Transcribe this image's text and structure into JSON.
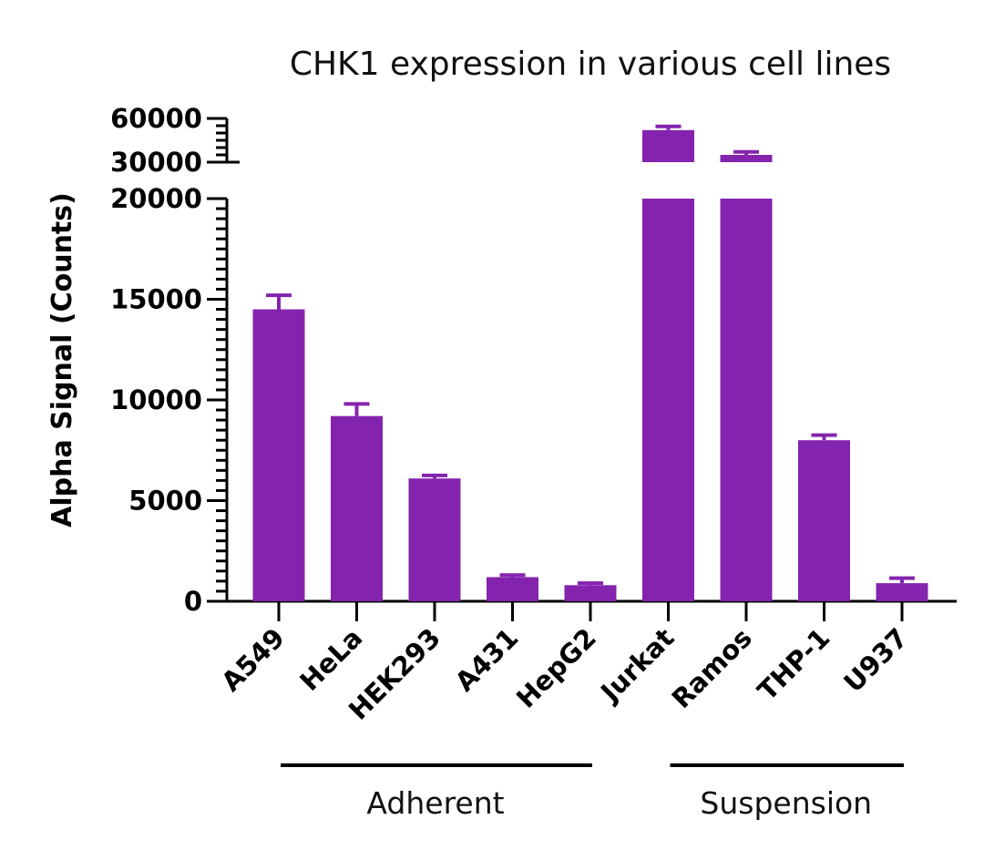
{
  "chart_data": {
    "type": "bar",
    "title": "CHK1 expression in various cell lines",
    "ylabel": "Alpha Signal (Counts)",
    "xlabel": "",
    "categories": [
      "A549",
      "HeLa",
      "HEK293",
      "A431",
      "HepG2",
      "Jurkat",
      "Ramos",
      "THP-1",
      "U937"
    ],
    "values": [
      14500,
      9200,
      6100,
      1200,
      800,
      52000,
      35000,
      8000,
      900
    ],
    "errors": [
      700,
      600,
      150,
      100,
      100,
      2500,
      2000,
      250,
      250
    ],
    "color": "#8424AE",
    "y_axis": {
      "broken": true,
      "lower_segment": {
        "range": [
          0,
          20000
        ],
        "tick_labels": [
          "0",
          "5000",
          "10000",
          "15000",
          "20000"
        ],
        "ticks": [
          0,
          5000,
          10000,
          15000,
          20000
        ]
      },
      "upper_segment": {
        "range": [
          30000,
          60000
        ],
        "tick_labels": [
          "30000",
          "60000"
        ],
        "ticks": [
          30000,
          60000
        ]
      }
    },
    "groups": [
      {
        "label": "Adherent",
        "members": [
          "A549",
          "HeLa",
          "HEK293",
          "A431",
          "HepG2"
        ]
      },
      {
        "label": "Suspension",
        "members": [
          "Jurkat",
          "Ramos",
          "THP-1",
          "U937"
        ]
      }
    ],
    "grid": false,
    "legend": "none"
  }
}
